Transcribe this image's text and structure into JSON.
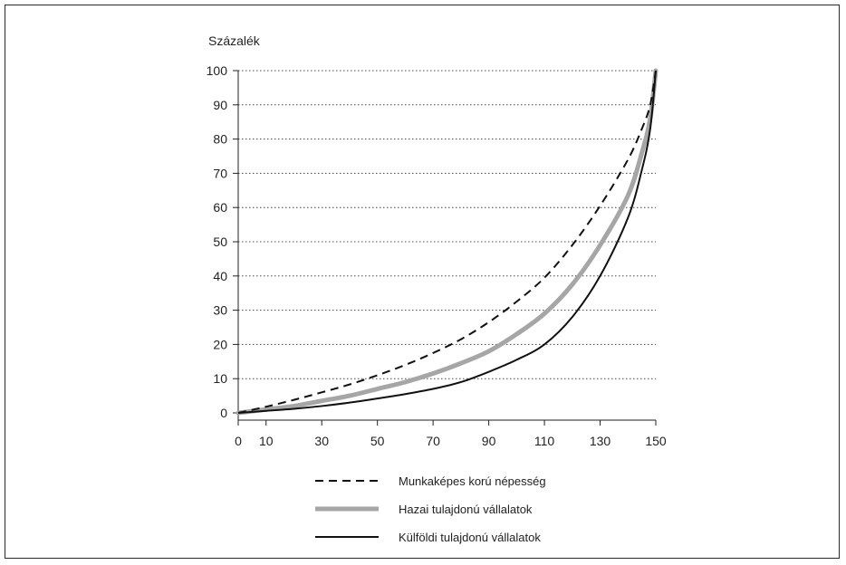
{
  "chart_data": {
    "type": "line",
    "title": "",
    "ylabel": "Százalék",
    "xlabel": "",
    "xlim": [
      0,
      150
    ],
    "ylim": [
      0,
      100
    ],
    "x_ticks": [
      0,
      10,
      30,
      50,
      70,
      90,
      110,
      130,
      150
    ],
    "y_ticks": [
      0,
      10,
      20,
      30,
      40,
      50,
      60,
      70,
      80,
      90,
      100
    ],
    "grid": "horizontal dotted",
    "legend_position": "bottom",
    "series": [
      {
        "name": "Munkaképes korú népesség",
        "style": "dashed",
        "color": "#111111",
        "x": [
          0,
          10,
          20,
          30,
          40,
          50,
          60,
          70,
          80,
          90,
          100,
          110,
          120,
          130,
          140,
          145,
          148,
          150
        ],
        "y": [
          0,
          1.8,
          3.8,
          6,
          8.3,
          11,
          14,
          17.5,
          21.5,
          26.5,
          32.5,
          39.5,
          49,
          60.5,
          74,
          83,
          90,
          100
        ]
      },
      {
        "name": "Hazai tulajdonú vállalatok",
        "style": "thick-gray",
        "color": "#a6a6a6",
        "x": [
          0,
          10,
          20,
          30,
          40,
          50,
          60,
          70,
          80,
          90,
          100,
          110,
          120,
          130,
          140,
          145,
          148,
          150
        ],
        "y": [
          0,
          1,
          2,
          3.5,
          5,
          7,
          9,
          11.5,
          14.5,
          18,
          23,
          29,
          37.5,
          49,
          63.5,
          76,
          86,
          100
        ]
      },
      {
        "name": "Külföldi tulajdonú vállalatok",
        "style": "solid",
        "color": "#111111",
        "x": [
          0,
          10,
          20,
          30,
          40,
          50,
          60,
          70,
          80,
          90,
          100,
          110,
          120,
          130,
          140,
          145,
          148,
          150
        ],
        "y": [
          0,
          0.6,
          1.2,
          2,
          3,
          4.2,
          5.5,
          7,
          9,
          12,
          15.5,
          20,
          28,
          40,
          57,
          71,
          83,
          100
        ]
      }
    ]
  }
}
